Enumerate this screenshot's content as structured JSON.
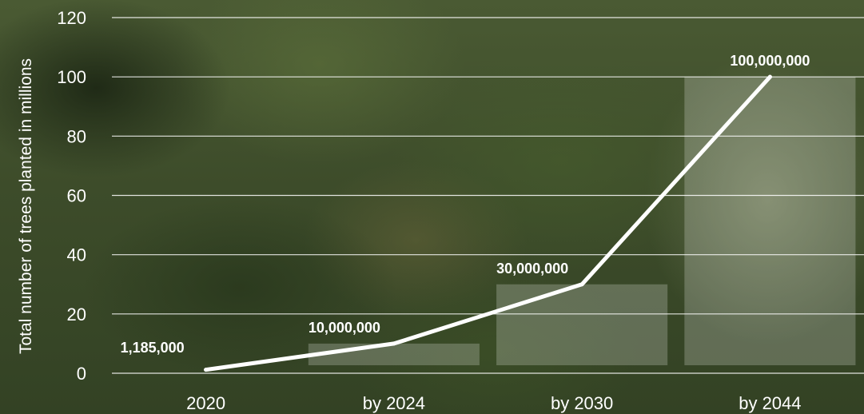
{
  "chart_data": {
    "type": "line",
    "title": "",
    "xlabel": "",
    "ylabel": "Total number of trees planted in millions",
    "categories": [
      "2020",
      "by 2024",
      "by 2030",
      "by 2044"
    ],
    "series": [
      {
        "values": [
          1.185,
          10,
          30,
          100
        ]
      }
    ],
    "data_labels": [
      "1,185,000",
      "10,000,000",
      "30,000,000",
      "100,000,000"
    ],
    "ylim": [
      0,
      120
    ],
    "yticks": [
      0,
      20,
      40,
      60,
      80,
      100,
      120
    ],
    "grid": true,
    "colors": {
      "line": "#ffffff",
      "grid": "#ffffff",
      "text": "#ffffff",
      "bar_fill": "rgba(255,255,255,0.22)"
    }
  }
}
